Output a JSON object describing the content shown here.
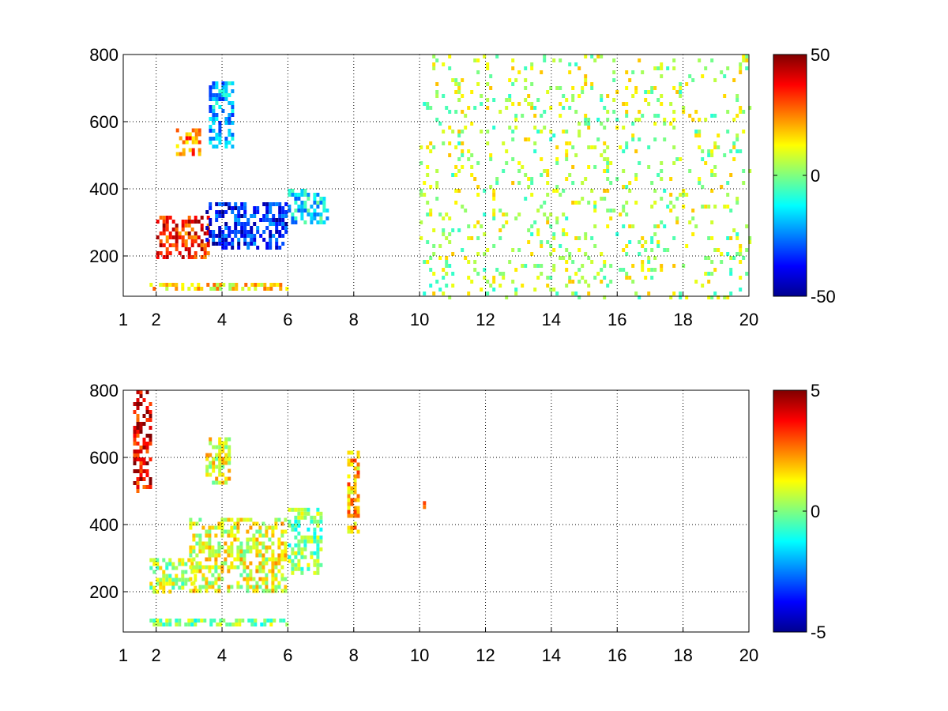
{
  "figure": {
    "background": "#ffffff"
  },
  "chart_data": [
    {
      "type": "heatmap",
      "title": "",
      "xlabel": "",
      "ylabel": "",
      "xlim": [
        1,
        20
      ],
      "ylim": [
        80,
        800
      ],
      "x_ticks": [
        1,
        2,
        4,
        6,
        8,
        10,
        12,
        14,
        16,
        18,
        20
      ],
      "x_tick_labels": [
        "1",
        "2",
        "4",
        "6",
        "8",
        "10",
        "12",
        "14",
        "16",
        "18",
        "20"
      ],
      "y_ticks": [
        200,
        400,
        600,
        800
      ],
      "y_tick_labels": [
        "200",
        "400",
        "600",
        "800"
      ],
      "grid": true,
      "grid_style": "dotted",
      "colormap": "jet",
      "color_limits": [
        -50,
        50
      ],
      "colorbar": {
        "position": "right",
        "ticks": [
          -50,
          0,
          50
        ],
        "tick_labels": [
          "-50",
          "0",
          "50"
        ]
      },
      "features": [
        {
          "x": [
            2.0,
            3.6
          ],
          "y": [
            200,
            320
          ],
          "value": 35
        },
        {
          "x": [
            3.5,
            5.9
          ],
          "y": [
            220,
            360
          ],
          "value": -35
        },
        {
          "x": [
            3.6,
            4.3
          ],
          "y": [
            520,
            720
          ],
          "value": -20
        },
        {
          "x": [
            2.6,
            3.3
          ],
          "y": [
            500,
            580
          ],
          "value": 25
        },
        {
          "x": [
            1.8,
            6.0
          ],
          "y": [
            100,
            120
          ],
          "value": 15
        },
        {
          "x": [
            6.0,
            7.2
          ],
          "y": [
            300,
            400
          ],
          "value": -15
        },
        {
          "x": [
            10.0,
            20.0
          ],
          "y": [
            80,
            800
          ],
          "value": 5
        }
      ]
    },
    {
      "type": "heatmap",
      "title": "",
      "xlabel": "",
      "ylabel": "",
      "xlim": [
        1,
        20
      ],
      "ylim": [
        80,
        800
      ],
      "x_ticks": [
        1,
        2,
        4,
        6,
        8,
        10,
        12,
        14,
        16,
        18,
        20
      ],
      "x_tick_labels": [
        "1",
        "2",
        "4",
        "6",
        "8",
        "10",
        "12",
        "14",
        "16",
        "18",
        "20"
      ],
      "y_ticks": [
        200,
        400,
        600,
        800
      ],
      "y_tick_labels": [
        "200",
        "400",
        "600",
        "800"
      ],
      "grid": true,
      "grid_style": "dotted",
      "colormap": "jet",
      "color_limits": [
        -5,
        5
      ],
      "colorbar": {
        "position": "right",
        "ticks": [
          -5,
          0,
          5
        ],
        "tick_labels": [
          "-5",
          "0",
          "5"
        ]
      },
      "features": [
        {
          "x": [
            1.8,
            3.2
          ],
          "y": [
            200,
            300
          ],
          "value": 0.5
        },
        {
          "x": [
            3.0,
            5.9
          ],
          "y": [
            200,
            420
          ],
          "value": 1.0
        },
        {
          "x": [
            3.5,
            4.2
          ],
          "y": [
            520,
            660
          ],
          "value": 1.0
        },
        {
          "x": [
            1.8,
            6.0
          ],
          "y": [
            100,
            120
          ],
          "value": 0.0
        },
        {
          "x": [
            1.3,
            1.8
          ],
          "y": [
            500,
            800
          ],
          "value": 4.0
        },
        {
          "x": [
            6.0,
            7.0
          ],
          "y": [
            250,
            450
          ],
          "value": 0.0
        },
        {
          "x": [
            7.8,
            8.1
          ],
          "y": [
            380,
            620
          ],
          "value": 2.0
        },
        {
          "x": [
            10.1,
            10.2
          ],
          "y": [
            450,
            470
          ],
          "value": 3.0
        }
      ]
    }
  ]
}
